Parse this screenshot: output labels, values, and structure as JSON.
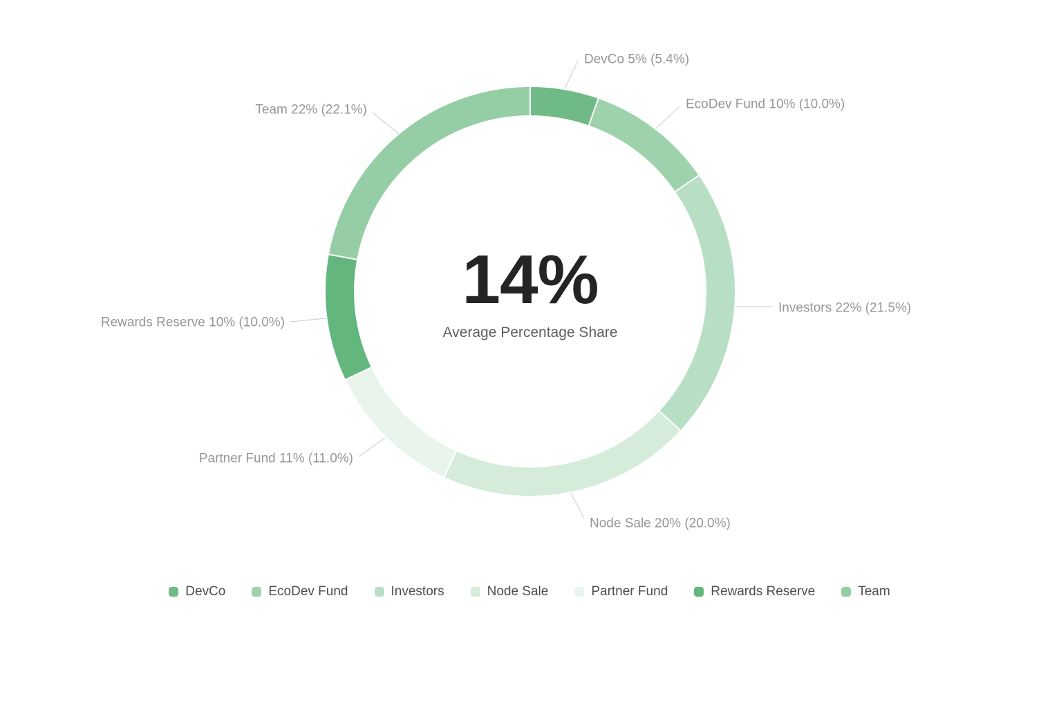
{
  "chart_data": {
    "type": "pie",
    "subtype": "donut",
    "title": "14%",
    "subtitle": "Average Percentage Share",
    "background": "#ffffff",
    "start_angle": "12 o'clock",
    "direction": "clockwise",
    "label_color": "#969696",
    "leader_line_color": "#d2d2d2",
    "slices": [
      {
        "name": "DevCo",
        "value": 5.4,
        "rounded": "5%",
        "exact": "5.4%",
        "label": "DevCo 5% (5.4%)",
        "color": "#70ba87"
      },
      {
        "name": "EcoDev Fund",
        "value": 10.0,
        "rounded": "10%",
        "exact": "10.0%",
        "label": "EcoDev Fund 10% (10.0%)",
        "color": "#9ed2ac"
      },
      {
        "name": "Investors",
        "value": 21.5,
        "rounded": "22%",
        "exact": "21.5%",
        "label": "Investors 22% (21.5%)",
        "color": "#b8dfc3"
      },
      {
        "name": "Node Sale",
        "value": 20.0,
        "rounded": "20%",
        "exact": "20.0%",
        "label": "Node Sale 20% (20.0%)",
        "color": "#d5ecdb"
      },
      {
        "name": "Partner Fund",
        "value": 11.0,
        "rounded": "11%",
        "exact": "11.0%",
        "label": "Partner Fund 11% (11.0%)",
        "color": "#e9f4ec"
      },
      {
        "name": "Rewards Reserve",
        "value": 10.0,
        "rounded": "10%",
        "exact": "10.0%",
        "label": "Rewards Reserve 10% (10.0%)",
        "color": "#63b67e"
      },
      {
        "name": "Team",
        "value": 22.1,
        "rounded": "22%",
        "exact": "22.1%",
        "label": "Team 22% (22.1%)",
        "color": "#95cda5"
      }
    ],
    "legend": {
      "position": "bottom",
      "items": [
        "DevCo",
        "EcoDev Fund",
        "Investors",
        "Node Sale",
        "Partner Fund",
        "Rewards Reserve",
        "Team"
      ]
    }
  }
}
